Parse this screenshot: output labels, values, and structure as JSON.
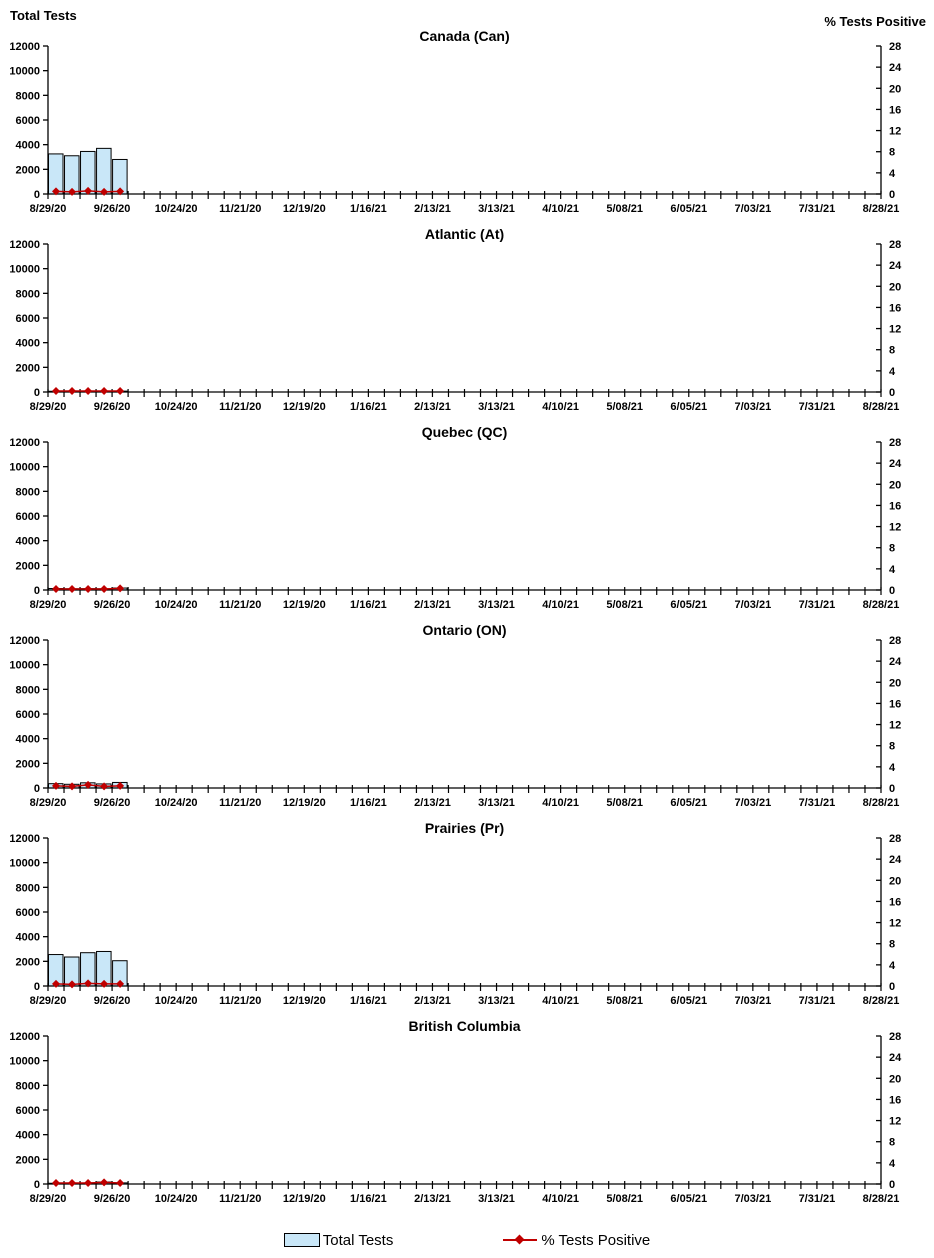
{
  "page": {
    "left_header": "Total Tests",
    "right_header": "% Tests Positive"
  },
  "colors": {
    "bar_fill": "#C9E7F8",
    "bar_border": "#000000",
    "line": "#C00000",
    "axis": "#000000"
  },
  "legend": {
    "items": [
      {
        "label": "Total Tests",
        "marker": "bar-swatch",
        "color": "#C9E7F8"
      },
      {
        "label": "% Tests Positive",
        "marker": "line-diamond",
        "color": "#C00000"
      }
    ]
  },
  "chart_data": [
    {
      "type": "combo-bar-line",
      "title": "Canada (Can)",
      "x_tick_labels": [
        "8/29/20",
        "9/26/20",
        "10/24/20",
        "11/21/20",
        "12/19/20",
        "1/16/21",
        "2/13/21",
        "3/13/21",
        "4/10/21",
        "5/08/21",
        "6/05/21",
        "7/03/21",
        "7/31/21",
        "8/28/21"
      ],
      "weeks_between_labels": 4,
      "total_week_ticks": 53,
      "left_axis": {
        "label": "Total Tests",
        "lim": [
          0,
          12000
        ],
        "step": 2000
      },
      "right_axis": {
        "label": "% Tests Positive",
        "lim": [
          0,
          28
        ],
        "step": 4
      },
      "series": [
        {
          "name": "Total Tests",
          "type": "bar",
          "axis": "left",
          "x": [
            "8/29/20",
            "9/5/20",
            "9/12/20",
            "9/19/20",
            "9/26/20"
          ],
          "values": [
            3250,
            3100,
            3450,
            3700,
            2800
          ]
        },
        {
          "name": "% Tests Positive",
          "type": "line",
          "axis": "right",
          "x": [
            "8/29/20",
            "9/5/20",
            "9/12/20",
            "9/19/20",
            "9/26/20"
          ],
          "values": [
            0.5,
            0.4,
            0.6,
            0.4,
            0.5
          ]
        }
      ]
    },
    {
      "type": "combo-bar-line",
      "title": "Atlantic (At)",
      "x_tick_labels": [
        "8/29/20",
        "9/26/20",
        "10/24/20",
        "11/21/20",
        "12/19/20",
        "1/16/21",
        "2/13/21",
        "3/13/21",
        "4/10/21",
        "5/08/21",
        "6/05/21",
        "7/03/21",
        "7/31/21",
        "8/28/21"
      ],
      "weeks_between_labels": 4,
      "total_week_ticks": 53,
      "left_axis": {
        "label": "Total Tests",
        "lim": [
          0,
          12000
        ],
        "step": 2000
      },
      "right_axis": {
        "label": "% Tests Positive",
        "lim": [
          0,
          28
        ],
        "step": 4
      },
      "series": [
        {
          "name": "Total Tests",
          "type": "bar",
          "axis": "left",
          "x": [
            "8/29/20",
            "9/5/20",
            "9/12/20",
            "9/19/20",
            "9/26/20"
          ],
          "values": [
            60,
            70,
            60,
            80,
            70
          ]
        },
        {
          "name": "% Tests Positive",
          "type": "line",
          "axis": "right",
          "x": [
            "8/29/20",
            "9/5/20",
            "9/12/20",
            "9/19/20",
            "9/26/20"
          ],
          "values": [
            0.2,
            0.2,
            0.2,
            0.2,
            0.2
          ]
        }
      ]
    },
    {
      "type": "combo-bar-line",
      "title": "Quebec (QC)",
      "x_tick_labels": [
        "8/29/20",
        "9/26/20",
        "10/24/20",
        "11/21/20",
        "12/19/20",
        "1/16/21",
        "2/13/21",
        "3/13/21",
        "4/10/21",
        "5/08/21",
        "6/05/21",
        "7/03/21",
        "7/31/21",
        "8/28/21"
      ],
      "weeks_between_labels": 4,
      "total_week_ticks": 53,
      "left_axis": {
        "label": "Total Tests",
        "lim": [
          0,
          12000
        ],
        "step": 2000
      },
      "right_axis": {
        "label": "% Tests Positive",
        "lim": [
          0,
          28
        ],
        "step": 4
      },
      "series": [
        {
          "name": "Total Tests",
          "type": "bar",
          "axis": "left",
          "x": [
            "8/29/20",
            "9/5/20",
            "9/12/20",
            "9/19/20",
            "9/26/20"
          ],
          "values": [
            120,
            100,
            110,
            100,
            160
          ]
        },
        {
          "name": "% Tests Positive",
          "type": "line",
          "axis": "right",
          "x": [
            "8/29/20",
            "9/5/20",
            "9/12/20",
            "9/19/20",
            "9/26/20"
          ],
          "values": [
            0.2,
            0.2,
            0.2,
            0.2,
            0.3
          ]
        }
      ]
    },
    {
      "type": "combo-bar-line",
      "title": "Ontario (ON)",
      "x_tick_labels": [
        "8/29/20",
        "9/26/20",
        "10/24/20",
        "11/21/20",
        "12/19/20",
        "1/16/21",
        "2/13/21",
        "3/13/21",
        "4/10/21",
        "5/08/21",
        "6/05/21",
        "7/03/21",
        "7/31/21",
        "8/28/21"
      ],
      "weeks_between_labels": 4,
      "total_week_ticks": 53,
      "left_axis": {
        "label": "Total Tests",
        "lim": [
          0,
          12000
        ],
        "step": 2000
      },
      "right_axis": {
        "label": "% Tests Positive",
        "lim": [
          0,
          28
        ],
        "step": 4
      },
      "series": [
        {
          "name": "Total Tests",
          "type": "bar",
          "axis": "left",
          "x": [
            "8/29/20",
            "9/5/20",
            "9/12/20",
            "9/19/20",
            "9/26/20"
          ],
          "values": [
            350,
            300,
            420,
            330,
            450
          ]
        },
        {
          "name": "% Tests Positive",
          "type": "line",
          "axis": "right",
          "x": [
            "8/29/20",
            "9/5/20",
            "9/12/20",
            "9/19/20",
            "9/26/20"
          ],
          "values": [
            0.4,
            0.3,
            0.6,
            0.3,
            0.4
          ]
        }
      ]
    },
    {
      "type": "combo-bar-line",
      "title": "Prairies (Pr)",
      "x_tick_labels": [
        "8/29/20",
        "9/26/20",
        "10/24/20",
        "11/21/20",
        "12/19/20",
        "1/16/21",
        "2/13/21",
        "3/13/21",
        "4/10/21",
        "5/08/21",
        "6/05/21",
        "7/03/21",
        "7/31/21",
        "8/28/21"
      ],
      "weeks_between_labels": 4,
      "total_week_ticks": 53,
      "left_axis": {
        "label": "Total Tests",
        "lim": [
          0,
          12000
        ],
        "step": 2000
      },
      "right_axis": {
        "label": "% Tests Positive",
        "lim": [
          0,
          28
        ],
        "step": 4
      },
      "series": [
        {
          "name": "Total Tests",
          "type": "bar",
          "axis": "left",
          "x": [
            "8/29/20",
            "9/5/20",
            "9/12/20",
            "9/19/20",
            "9/26/20"
          ],
          "values": [
            2550,
            2350,
            2700,
            2800,
            2050
          ]
        },
        {
          "name": "% Tests Positive",
          "type": "line",
          "axis": "right",
          "x": [
            "8/29/20",
            "9/5/20",
            "9/12/20",
            "9/19/20",
            "9/26/20"
          ],
          "values": [
            0.4,
            0.3,
            0.5,
            0.4,
            0.4
          ]
        }
      ]
    },
    {
      "type": "combo-bar-line",
      "title": "British Columbia",
      "x_tick_labels": [
        "8/29/20",
        "9/26/20",
        "10/24/20",
        "11/21/20",
        "12/19/20",
        "1/16/21",
        "2/13/21",
        "3/13/21",
        "4/10/21",
        "5/08/21",
        "6/05/21",
        "7/03/21",
        "7/31/21",
        "8/28/21"
      ],
      "weeks_between_labels": 4,
      "total_week_ticks": 53,
      "left_axis": {
        "label": "Total Tests",
        "lim": [
          0,
          12000
        ],
        "step": 2000
      },
      "right_axis": {
        "label": "% Tests Positive",
        "lim": [
          0,
          28
        ],
        "step": 4
      },
      "series": [
        {
          "name": "Total Tests",
          "type": "bar",
          "axis": "left",
          "x": [
            "8/29/20",
            "9/5/20",
            "9/12/20",
            "9/19/20",
            "9/26/20"
          ],
          "values": [
            60,
            50,
            80,
            160,
            90
          ]
        },
        {
          "name": "% Tests Positive",
          "type": "line",
          "axis": "right",
          "x": [
            "8/29/20",
            "9/5/20",
            "9/12/20",
            "9/19/20",
            "9/26/20"
          ],
          "values": [
            0.2,
            0.2,
            0.2,
            0.3,
            0.2
          ]
        }
      ]
    }
  ]
}
